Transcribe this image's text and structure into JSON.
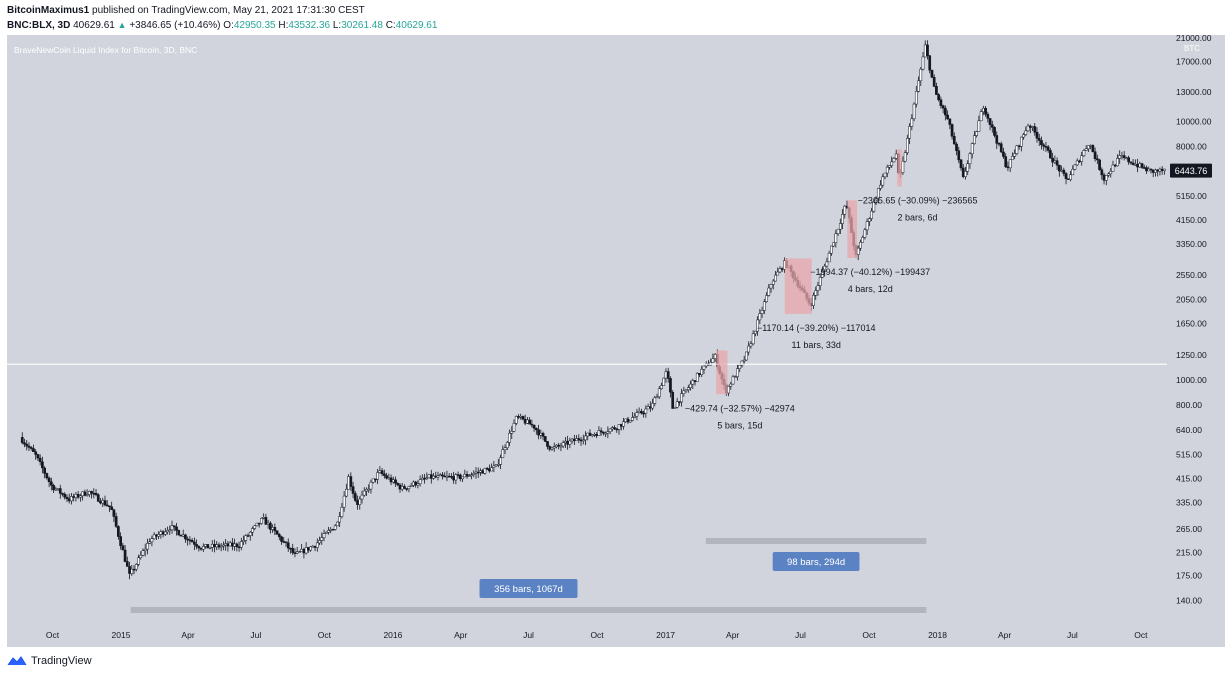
{
  "header": {
    "author": "BitcoinMaximus1",
    "published": "published on TradingView.com, May 21, 2021 17:31:30 CEST"
  },
  "ohlc": {
    "symbol": "BNC:BLX, 3D",
    "last": "40629.61",
    "change": "+3846.65 (+10.46%)",
    "o_label": "O:",
    "o": "42950.35",
    "h_label": "H:",
    "h": "43532.36",
    "l_label": "L:",
    "l": "30261.48",
    "c_label": "C:",
    "c": "40629.61"
  },
  "colors": {
    "plot_bg": "#d1d4dc",
    "candle": "#131722",
    "highlight": "#e8a7ac",
    "bar_gray": "#b2b5be",
    "badge_blue": "#5b83c4",
    "hline": "#ffffff",
    "price_tag": "#131722"
  },
  "chart_data": {
    "type": "candlestick",
    "title": "BraveNewCoin Liquid Index for Bitcoin, 3D, BNC",
    "y_unit": "BTC",
    "y_scale": "log",
    "ylim": [
      120,
      21000
    ],
    "y_ticks": [
      "21000.00",
      "17000.00",
      "13000.00",
      "10000.00",
      "8000.00",
      "6443.76",
      "5150.00",
      "4150.00",
      "3350.00",
      "2550.00",
      "2050.00",
      "1650.00",
      "1250.00",
      "1000.00",
      "800.00",
      "640.00",
      "515.00",
      "415.00",
      "335.00",
      "265.00",
      "215.00",
      "175.00",
      "140.00"
    ],
    "x_ticks": [
      "Oct",
      "2015",
      "Apr",
      "Jul",
      "Oct",
      "2016",
      "Apr",
      "Jul",
      "Oct",
      "2017",
      "Apr",
      "Jul",
      "Oct",
      "2018",
      "Apr",
      "Jul",
      "Oct"
    ],
    "x_range": [
      "2014-08",
      "2018-11"
    ],
    "last_price": 6443.76,
    "horizontal_line_price": 1150,
    "price_path": [
      [
        "2014-08-20",
        600
      ],
      [
        "2014-09-10",
        510
      ],
      [
        "2014-10-01",
        390
      ],
      [
        "2014-10-25",
        345
      ],
      [
        "2014-11-20",
        370
      ],
      [
        "2014-12-20",
        320
      ],
      [
        "2015-01-14",
        175
      ],
      [
        "2015-02-10",
        240
      ],
      [
        "2015-03-10",
        270
      ],
      [
        "2015-04-20",
        225
      ],
      [
        "2015-06-10",
        230
      ],
      [
        "2015-07-12",
        290
      ],
      [
        "2015-08-24",
        210
      ],
      [
        "2015-09-20",
        230
      ],
      [
        "2015-10-20",
        280
      ],
      [
        "2015-11-04",
        420
      ],
      [
        "2015-11-15",
        330
      ],
      [
        "2015-12-15",
        440
      ],
      [
        "2016-01-15",
        380
      ],
      [
        "2016-02-20",
        420
      ],
      [
        "2016-04-01",
        420
      ],
      [
        "2016-05-20",
        460
      ],
      [
        "2016-06-17",
        720
      ],
      [
        "2016-07-10",
        660
      ],
      [
        "2016-08-02",
        540
      ],
      [
        "2016-09-20",
        610
      ],
      [
        "2016-10-25",
        650
      ],
      [
        "2016-12-15",
        790
      ],
      [
        "2017-01-04",
        1080
      ],
      [
        "2017-01-12",
        780
      ],
      [
        "2017-02-20",
        1090
      ],
      [
        "2017-03-10",
        1230
      ],
      [
        "2017-03-24",
        900
      ],
      [
        "2017-04-20",
        1230
      ],
      [
        "2017-05-25",
        2400
      ],
      [
        "2017-06-12",
        2850
      ],
      [
        "2017-07-16",
        1950
      ],
      [
        "2017-08-05",
        2800
      ],
      [
        "2017-09-02",
        4800
      ],
      [
        "2017-09-15",
        3000
      ],
      [
        "2017-10-20",
        6000
      ],
      [
        "2017-11-08",
        7500
      ],
      [
        "2017-11-12",
        5800
      ],
      [
        "2017-12-17",
        19500
      ],
      [
        "2017-12-30",
        13000
      ],
      [
        "2018-01-17",
        10000
      ],
      [
        "2018-02-06",
        6000
      ],
      [
        "2018-03-05",
        11500
      ],
      [
        "2018-04-06",
        6600
      ],
      [
        "2018-05-05",
        9800
      ],
      [
        "2018-06-25",
        5900
      ],
      [
        "2018-07-25",
        8300
      ],
      [
        "2018-08-14",
        6000
      ],
      [
        "2018-09-05",
        7300
      ],
      [
        "2018-10-15",
        6400
      ],
      [
        "2018-11-01",
        6443.76
      ]
    ],
    "annotations": [
      {
        "line1": "−429.74 (−32.57%) −42974",
        "line2": "5 bars, 15d",
        "t_start": "2017-03-10",
        "t_end": "2017-03-25",
        "p_high": 1300,
        "p_low": 880
      },
      {
        "line1": "−1170.14 (−39.20%) −117014",
        "line2": "11 bars, 33d",
        "t_start": "2017-06-10",
        "t_end": "2017-07-16",
        "p_high": 2950,
        "p_low": 1800
      },
      {
        "line1": "−1994.37 (−40.12%) −199437",
        "line2": "4 bars, 12d",
        "t_start": "2017-09-02",
        "t_end": "2017-09-15",
        "p_high": 4950,
        "p_low": 2960
      },
      {
        "line1": "−2365.65 (−30.09%) −236565",
        "line2": "2 bars, 6d",
        "t_start": "2017-11-08",
        "t_end": "2017-11-14",
        "p_high": 7800,
        "p_low": 5600
      }
    ],
    "range_bars": [
      {
        "label": "356 bars, 1067d",
        "t_start": "2015-01-14",
        "t_end": "2017-12-17"
      },
      {
        "label": "98 bars, 294d",
        "t_start": "2017-02-24",
        "t_end": "2017-12-17"
      }
    ]
  },
  "footer": {
    "brand": "TradingView"
  }
}
